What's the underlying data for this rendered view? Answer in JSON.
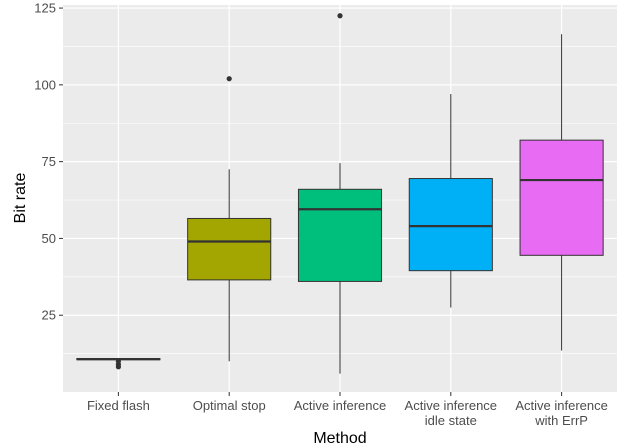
{
  "chart_data": {
    "type": "boxplot",
    "xlabel": "Method",
    "ylabel": "Bit rate",
    "ylim": [
      0,
      126
    ],
    "yticks": [
      25,
      50,
      75,
      100,
      125
    ],
    "grid": true,
    "legend": "none",
    "categories": [
      {
        "label": [
          "Fixed flash"
        ],
        "color": "#F8766D",
        "min": 10.5,
        "q1": 10.5,
        "median": 10.7,
        "q3": 10.9,
        "max": 10.9,
        "outliers": [
          10.0,
          9.0,
          8.2
        ]
      },
      {
        "label": [
          "Optimal stop"
        ],
        "color": "#A3A500",
        "min": 10,
        "q1": 36.5,
        "median": 49,
        "q3": 56.5,
        "max": 72.5,
        "outliers": [
          102
        ]
      },
      {
        "label": [
          "Active inference"
        ],
        "color": "#00BF7D",
        "min": 6,
        "q1": 36,
        "median": 59.5,
        "q3": 66,
        "max": 74.5,
        "outliers": [
          122.5
        ]
      },
      {
        "label": [
          "Active inference",
          "idle state"
        ],
        "color": "#00B0F6",
        "min": 27.5,
        "q1": 39.5,
        "median": 54,
        "q3": 69.5,
        "max": 97,
        "outliers": []
      },
      {
        "label": [
          "Active inference",
          "with ErrP"
        ],
        "color": "#E76BF3",
        "min": 13.5,
        "q1": 44.5,
        "median": 69,
        "q3": 82,
        "max": 116.5,
        "outliers": []
      }
    ]
  }
}
